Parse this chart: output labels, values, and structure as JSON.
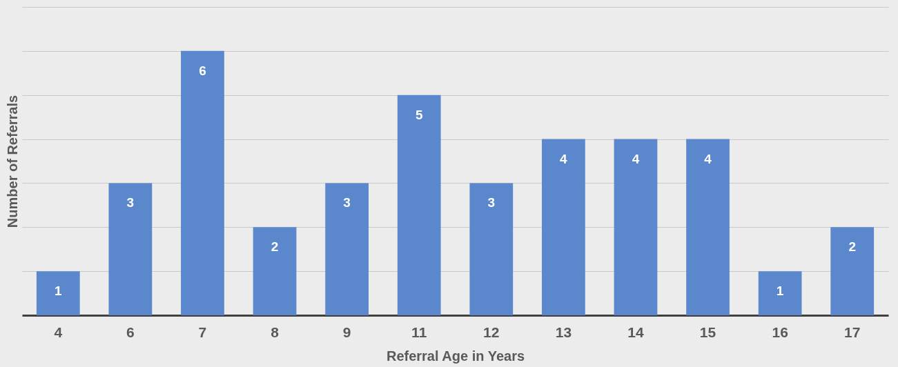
{
  "chart_data": {
    "type": "bar",
    "xlabel": "Referral Age in Years",
    "ylabel": "Number of Referrals",
    "categories": [
      "4",
      "6",
      "7",
      "8",
      "9",
      "11",
      "12",
      "13",
      "14",
      "15",
      "16",
      "17"
    ],
    "values": [
      1,
      3,
      6,
      2,
      3,
      5,
      3,
      4,
      4,
      4,
      1,
      2
    ],
    "color": "#5b87cc",
    "ylim": [
      0,
      7
    ],
    "yticks": [
      {
        "value": 0,
        "label": null
      },
      {
        "value": 1,
        "label": null
      },
      {
        "value": 2,
        "label": null
      },
      {
        "value": 3,
        "label": null
      },
      {
        "value": 4,
        "label": null
      },
      {
        "value": 5,
        "label": null
      },
      {
        "value": 6,
        "label": null
      },
      {
        "value": 7,
        "label": null
      }
    ],
    "grid": "y",
    "data_labels": true,
    "tick_labels": "x"
  }
}
